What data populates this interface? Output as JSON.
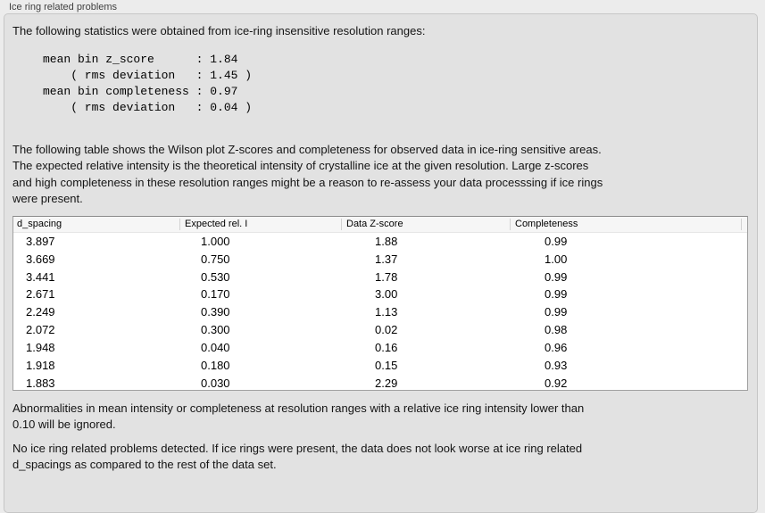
{
  "window": {
    "title": "Ice ring related problems"
  },
  "stats_section": {
    "intro": "The following statistics were obtained from ice-ring insensitive resolution ranges:",
    "block": "mean bin z_score      : 1.84\n    ( rms deviation   : 1.45 )\nmean bin completeness : 0.97\n    ( rms deviation   : 0.04 )",
    "values": {
      "mean_bin_z_score": "1.84",
      "z_score_rms_deviation": "1.45",
      "mean_bin_completeness": "0.97",
      "completeness_rms_deviation": "0.04"
    }
  },
  "table_section": {
    "description": "The following table shows the Wilson plot Z-scores and completeness for observed data in ice-ring sensitive areas.\nThe expected relative intensity is the theoretical intensity of crystalline ice at the given resolution. Large z-scores\nand high completeness in these resolution ranges might be a reason to re-assess your data processsing if ice rings\nwere present."
  },
  "table": {
    "columns": [
      "d_spacing",
      "Expected rel. I",
      "Data Z-score",
      "Completeness"
    ],
    "rows": [
      [
        "3.897",
        "1.000",
        "1.88",
        "0.99"
      ],
      [
        "3.669",
        "0.750",
        "1.37",
        "1.00"
      ],
      [
        "3.441",
        "0.530",
        "1.78",
        "0.99"
      ],
      [
        "2.671",
        "0.170",
        "3.00",
        "0.99"
      ],
      [
        "2.249",
        "0.390",
        "1.13",
        "0.99"
      ],
      [
        "2.072",
        "0.300",
        "0.02",
        "0.98"
      ],
      [
        "1.948",
        "0.040",
        "0.16",
        "0.96"
      ],
      [
        "1.918",
        "0.180",
        "0.15",
        "0.93"
      ],
      [
        "1.883",
        "0.030",
        "2.29",
        "0.92"
      ]
    ]
  },
  "notes": {
    "ignore_rule": "Abnormalities in mean intensity or completeness at resolution ranges with a relative ice ring intensity lower than\n0.10 will be ignored.",
    "verdict": "No ice ring related problems detected. If ice rings were present, the data does not look worse at ice ring related\nd_spacings as compared to the rest of the data set."
  },
  "colors": {
    "page_background": "#ececec",
    "panel_background": "#e2e2e2",
    "table_background": "#ffffff",
    "table_border": "#a0a0a0",
    "header_background": "#f6f6f6"
  }
}
